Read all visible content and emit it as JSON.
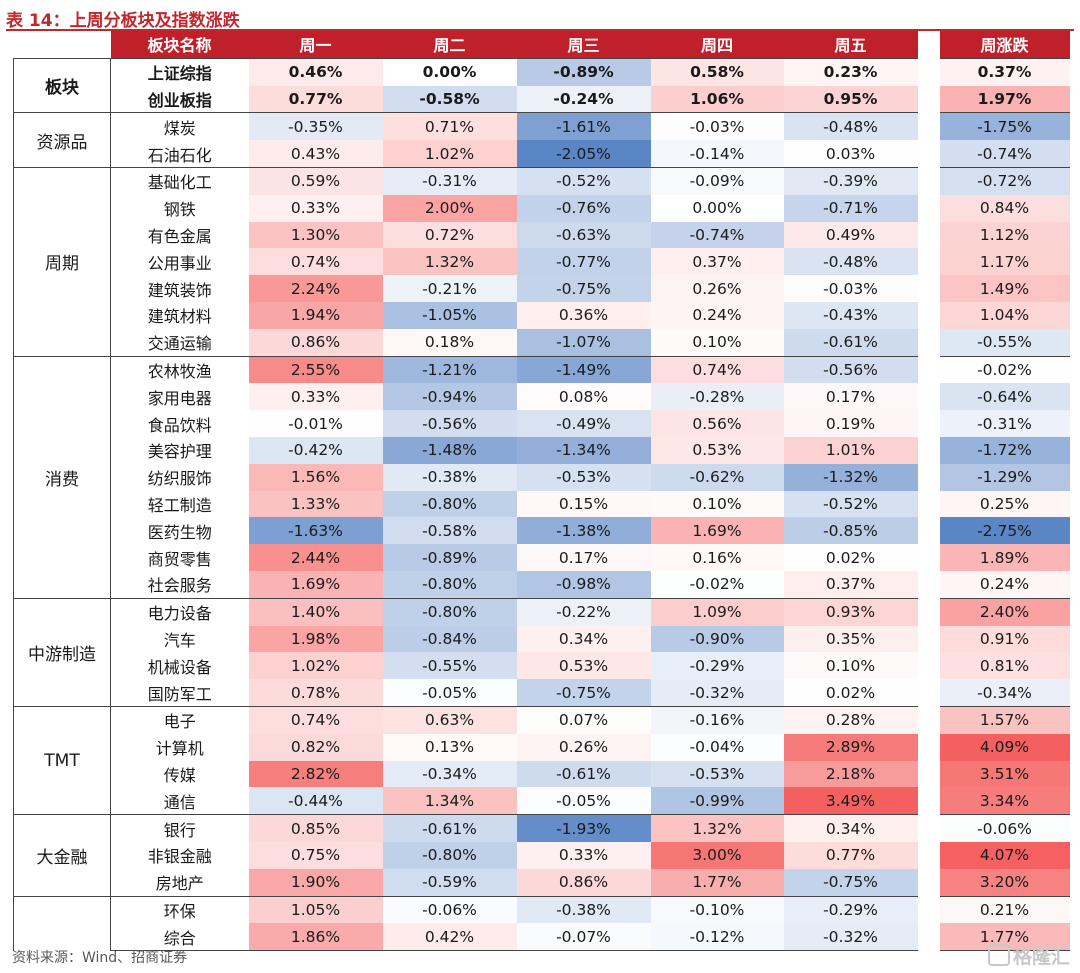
{
  "caption": "表 14：上周分板块及指数涨跌",
  "headers": {
    "sector": "板块名称",
    "mon": "周一",
    "tue": "周二",
    "wed": "周三",
    "thu": "周四",
    "fri": "周五",
    "week": "周涨跌"
  },
  "groups": [
    {
      "label": "板块",
      "rows": [
        {
          "name": "上证综指",
          "mon": "0.46%",
          "tue": "0.00%",
          "wed": "-0.89%",
          "thu": "0.58%",
          "fri": "0.23%",
          "week": "0.37%"
        },
        {
          "name": "创业板指",
          "mon": "0.77%",
          "tue": "-0.58%",
          "wed": "-0.24%",
          "thu": "1.06%",
          "fri": "0.95%",
          "week": "1.97%"
        }
      ]
    },
    {
      "label": "资源品",
      "rows": [
        {
          "name": "煤炭",
          "mon": "-0.35%",
          "tue": "0.71%",
          "wed": "-1.61%",
          "thu": "-0.03%",
          "fri": "-0.48%",
          "week": "-1.75%"
        },
        {
          "name": "石油石化",
          "mon": "0.43%",
          "tue": "1.02%",
          "wed": "-2.05%",
          "thu": "-0.14%",
          "fri": "0.03%",
          "week": "-0.74%"
        }
      ]
    },
    {
      "label": "周期",
      "rows": [
        {
          "name": "基础化工",
          "mon": "0.59%",
          "tue": "-0.31%",
          "wed": "-0.52%",
          "thu": "-0.09%",
          "fri": "-0.39%",
          "week": "-0.72%"
        },
        {
          "name": "钢铁",
          "mon": "0.33%",
          "tue": "2.00%",
          "wed": "-0.76%",
          "thu": "0.00%",
          "fri": "-0.71%",
          "week": "0.84%"
        },
        {
          "name": "有色金属",
          "mon": "1.30%",
          "tue": "0.72%",
          "wed": "-0.63%",
          "thu": "-0.74%",
          "fri": "0.49%",
          "week": "1.12%"
        },
        {
          "name": "公用事业",
          "mon": "0.74%",
          "tue": "1.32%",
          "wed": "-0.77%",
          "thu": "0.37%",
          "fri": "-0.48%",
          "week": "1.17%"
        },
        {
          "name": "建筑装饰",
          "mon": "2.24%",
          "tue": "-0.21%",
          "wed": "-0.75%",
          "thu": "0.26%",
          "fri": "-0.03%",
          "week": "1.49%"
        },
        {
          "name": "建筑材料",
          "mon": "1.94%",
          "tue": "-1.05%",
          "wed": "0.36%",
          "thu": "0.24%",
          "fri": "-0.43%",
          "week": "1.04%"
        },
        {
          "name": "交通运输",
          "mon": "0.86%",
          "tue": "0.18%",
          "wed": "-1.07%",
          "thu": "0.10%",
          "fri": "-0.61%",
          "week": "-0.55%"
        }
      ]
    },
    {
      "label": "消费",
      "rows": [
        {
          "name": "农林牧渔",
          "mon": "2.55%",
          "tue": "-1.21%",
          "wed": "-1.49%",
          "thu": "0.74%",
          "fri": "-0.56%",
          "week": "-0.02%"
        },
        {
          "name": "家用电器",
          "mon": "0.33%",
          "tue": "-0.94%",
          "wed": "0.08%",
          "thu": "-0.28%",
          "fri": "0.17%",
          "week": "-0.64%"
        },
        {
          "name": "食品饮料",
          "mon": "-0.01%",
          "tue": "-0.56%",
          "wed": "-0.49%",
          "thu": "0.56%",
          "fri": "0.19%",
          "week": "-0.31%"
        },
        {
          "name": "美容护理",
          "mon": "-0.42%",
          "tue": "-1.48%",
          "wed": "-1.34%",
          "thu": "0.53%",
          "fri": "1.01%",
          "week": "-1.72%"
        },
        {
          "name": "纺织服饰",
          "mon": "1.56%",
          "tue": "-0.38%",
          "wed": "-0.53%",
          "thu": "-0.62%",
          "fri": "-1.32%",
          "week": "-1.29%"
        },
        {
          "name": "轻工制造",
          "mon": "1.33%",
          "tue": "-0.80%",
          "wed": "0.15%",
          "thu": "0.10%",
          "fri": "-0.52%",
          "week": "0.25%"
        },
        {
          "name": "医药生物",
          "mon": "-1.63%",
          "tue": "-0.58%",
          "wed": "-1.38%",
          "thu": "1.69%",
          "fri": "-0.85%",
          "week": "-2.75%"
        },
        {
          "name": "商贸零售",
          "mon": "2.44%",
          "tue": "-0.89%",
          "wed": "0.17%",
          "thu": "0.16%",
          "fri": "0.02%",
          "week": "1.89%"
        },
        {
          "name": "社会服务",
          "mon": "1.69%",
          "tue": "-0.80%",
          "wed": "-0.98%",
          "thu": "-0.02%",
          "fri": "0.37%",
          "week": "0.24%"
        }
      ]
    },
    {
      "label": "中游制造",
      "rows": [
        {
          "name": "电力设备",
          "mon": "1.40%",
          "tue": "-0.80%",
          "wed": "-0.22%",
          "thu": "1.09%",
          "fri": "0.93%",
          "week": "2.40%"
        },
        {
          "name": "汽车",
          "mon": "1.98%",
          "tue": "-0.84%",
          "wed": "0.34%",
          "thu": "-0.90%",
          "fri": "0.35%",
          "week": "0.91%"
        },
        {
          "name": "机械设备",
          "mon": "1.02%",
          "tue": "-0.55%",
          "wed": "0.53%",
          "thu": "-0.29%",
          "fri": "0.10%",
          "week": "0.81%"
        },
        {
          "name": "国防军工",
          "mon": "0.78%",
          "tue": "-0.05%",
          "wed": "-0.75%",
          "thu": "-0.32%",
          "fri": "0.02%",
          "week": "-0.34%"
        }
      ]
    },
    {
      "label": "TMT",
      "rows": [
        {
          "name": "电子",
          "mon": "0.74%",
          "tue": "0.63%",
          "wed": "0.07%",
          "thu": "-0.16%",
          "fri": "0.28%",
          "week": "1.57%"
        },
        {
          "name": "计算机",
          "mon": "0.82%",
          "tue": "0.13%",
          "wed": "0.26%",
          "thu": "-0.04%",
          "fri": "2.89%",
          "week": "4.09%"
        },
        {
          "name": "传媒",
          "mon": "2.82%",
          "tue": "-0.34%",
          "wed": "-0.61%",
          "thu": "-0.53%",
          "fri": "2.18%",
          "week": "3.51%"
        },
        {
          "name": "通信",
          "mon": "-0.44%",
          "tue": "1.34%",
          "wed": "-0.05%",
          "thu": "-0.99%",
          "fri": "3.49%",
          "week": "3.34%"
        }
      ]
    },
    {
      "label": "大金融",
      "rows": [
        {
          "name": "银行",
          "mon": "0.85%",
          "tue": "-0.61%",
          "wed": "-1.93%",
          "thu": "1.32%",
          "fri": "0.34%",
          "week": "-0.06%"
        },
        {
          "name": "非银金融",
          "mon": "0.75%",
          "tue": "-0.80%",
          "wed": "0.33%",
          "thu": "3.00%",
          "fri": "0.77%",
          "week": "4.07%"
        },
        {
          "name": "房地产",
          "mon": "1.90%",
          "tue": "-0.59%",
          "wed": "0.86%",
          "thu": "1.77%",
          "fri": "-0.75%",
          "week": "3.20%"
        }
      ]
    },
    {
      "label": "",
      "rows": [
        {
          "name": "环保",
          "mon": "1.05%",
          "tue": "-0.06%",
          "wed": "-0.38%",
          "thu": "-0.10%",
          "fri": "-0.29%",
          "week": "0.21%"
        },
        {
          "name": "综合",
          "mon": "1.86%",
          "tue": "0.42%",
          "wed": "-0.07%",
          "thu": "-0.12%",
          "fri": "-0.32%",
          "week": "1.77%"
        }
      ]
    }
  ],
  "source": "资料来源：Wind、招商证券",
  "watermark": "格隆汇",
  "watermark_icon": "gelonghui-logo-icon",
  "colors": {
    "header_bg": "#c0202a",
    "positive_max": "#f4605f",
    "negative_max": "#5b86c6",
    "neutral": "#ffffff"
  }
}
